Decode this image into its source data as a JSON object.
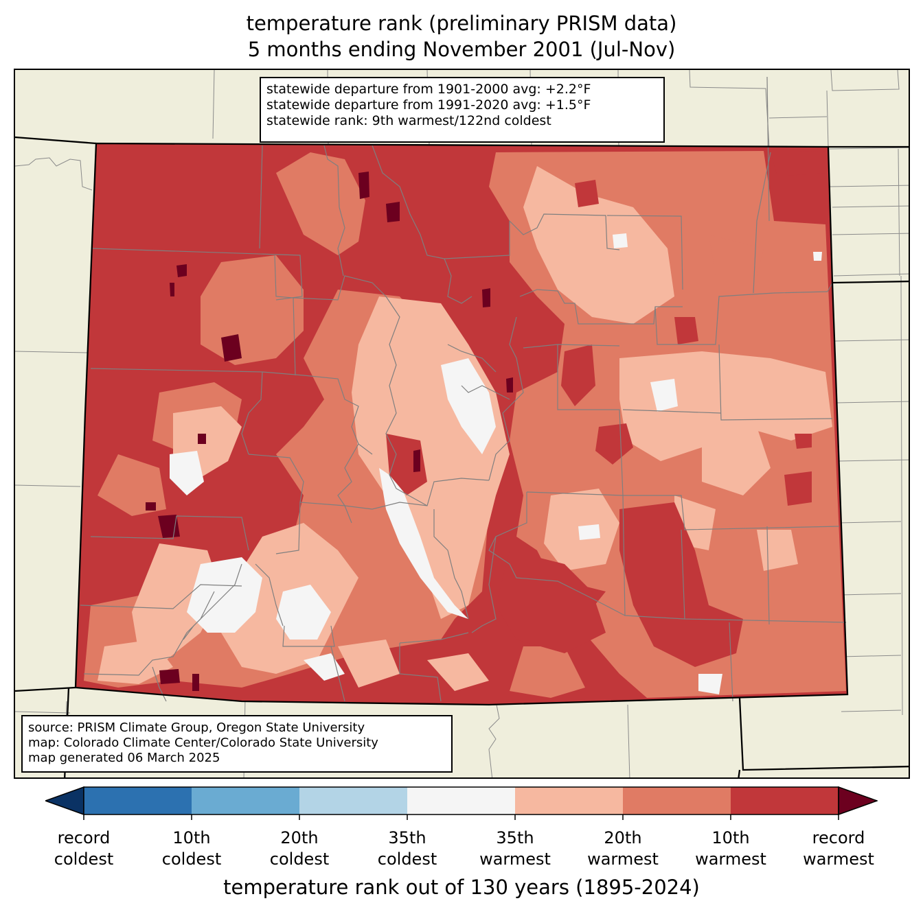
{
  "title": {
    "line1": "temperature rank (preliminary PRISM data)",
    "line2": "5 months ending November 2001 (Jul-Nov)"
  },
  "stats": {
    "line1": "statewide departure from 1901-2000 avg: +2.2°F",
    "line2": "statewide departure from 1991-2020 avg: +1.5°F",
    "line3": "statewide rank: 9th warmest/122nd coldest"
  },
  "source": {
    "line1": "source: PRISM Climate Group, Oregon State University",
    "line2": "map: Colorado Climate Center/Colorado State University",
    "line3": "map generated 06 March 2025"
  },
  "colorbar": {
    "title": "temperature rank out of 130 years (1895-2024)",
    "bins": [
      {
        "color": "#2c71b0"
      },
      {
        "color": "#6aabd2"
      },
      {
        "color": "#b3d4e6"
      },
      {
        "color": "#f5f5f5"
      },
      {
        "color": "#f6b8a0"
      },
      {
        "color": "#e07b64"
      },
      {
        "color": "#c1373a"
      }
    ],
    "under_color": "#0a3264",
    "over_color": "#6c001f",
    "ticks": [
      {
        "top": "record",
        "bottom": "coldest"
      },
      {
        "top": "10th",
        "bottom": "coldest"
      },
      {
        "top": "20th",
        "bottom": "coldest"
      },
      {
        "top": "35th",
        "bottom": "coldest"
      },
      {
        "top": "35th",
        "bottom": "warmest"
      },
      {
        "top": "20th",
        "bottom": "warmest"
      },
      {
        "top": "10th",
        "bottom": "warmest"
      },
      {
        "top": "record",
        "bottom": "warmest"
      }
    ]
  },
  "map_colors": {
    "background": "#efeedc",
    "record_warmest": "#6c001f",
    "top10_warmest": "#c1373a",
    "top20_warmest": "#e07b64",
    "top35_warmest": "#f6b8a0",
    "near_normal": "#f5f5f5"
  }
}
